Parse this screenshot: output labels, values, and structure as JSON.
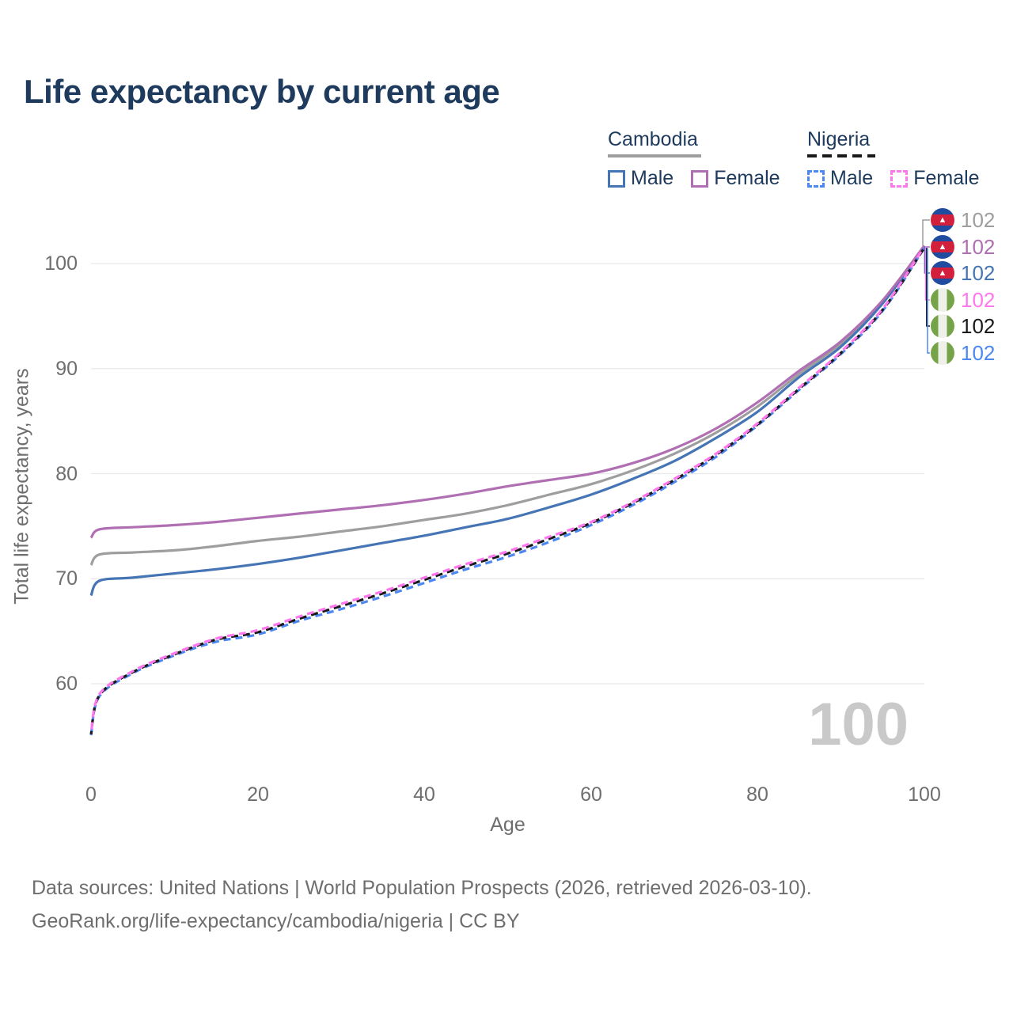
{
  "title": "Life expectancy by current age",
  "legend": {
    "cambodia": {
      "name": "Cambodia",
      "male_label": "Male",
      "female_label": "Female"
    },
    "nigeria": {
      "name": "Nigeria",
      "male_label": "Male",
      "female_label": "Female"
    }
  },
  "end_labels": [
    {
      "flag": "cambodia",
      "value": "102",
      "color": "#9e9e9e",
      "series": "cambodia_both"
    },
    {
      "flag": "cambodia",
      "value": "102",
      "color": "#b06fb2",
      "series": "cambodia_female"
    },
    {
      "flag": "cambodia",
      "value": "102",
      "color": "#4575b4",
      "series": "cambodia_male"
    },
    {
      "flag": "nigeria",
      "value": "102",
      "color": "#ff77ee",
      "series": "nigeria_female"
    },
    {
      "flag": "nigeria",
      "value": "102",
      "color": "#1a1a1a",
      "series": "nigeria_both"
    },
    {
      "flag": "nigeria",
      "value": "102",
      "color": "#4d87f2",
      "series": "nigeria_male"
    }
  ],
  "axes": {
    "xlabel": "Age",
    "ylabel": "Total life expectancy, years",
    "xticks": [
      "0",
      "20",
      "40",
      "60",
      "80",
      "100"
    ],
    "yticks": [
      "100",
      "90",
      "80",
      "70",
      "60"
    ]
  },
  "watermark": "100",
  "footer": {
    "line1": "Data sources: United Nations | World Population Prospects (2026, retrieved 2026-03-10).",
    "line2": "GeoRank.org/life-expectancy/cambodia/nigeria | CC BY"
  },
  "colors": {
    "title_text": "#1e3a5c",
    "grid": "#e9e9e9",
    "tick_text": "#6e6e6e",
    "watermark": "#c9c9c9",
    "cambodia_underline": "#9e9e9e",
    "nigeria_underline": "#1a1a1a"
  },
  "chart_data": {
    "type": "line",
    "title": "Life expectancy by current age",
    "xlabel": "Age",
    "ylabel": "Total life expectancy, years",
    "xlim": [
      0,
      100
    ],
    "ylim": [
      55,
      102
    ],
    "xticks": [
      0,
      20,
      40,
      60,
      80,
      100
    ],
    "yticks": [
      60,
      70,
      80,
      90,
      100
    ],
    "grid": "horizontal",
    "legend_position": "top-right",
    "x": [
      0,
      1,
      5,
      10,
      15,
      20,
      25,
      30,
      35,
      40,
      45,
      50,
      55,
      60,
      65,
      70,
      75,
      80,
      85,
      90,
      95,
      100
    ],
    "series": [
      {
        "id": "cambodia_both",
        "name": "Cambodia - both sexes",
        "color": "#9e9e9e",
        "dash": false,
        "values": [
          71.3,
          72.3,
          72.5,
          72.7,
          73.1,
          73.6,
          74.0,
          74.5,
          75.0,
          75.6,
          76.2,
          77.0,
          78.0,
          79.0,
          80.3,
          81.9,
          83.9,
          86.4,
          89.5,
          92.4,
          96.4,
          101.7
        ]
      },
      {
        "id": "cambodia_male",
        "name": "Cambodia - male",
        "color": "#4575b4",
        "dash": false,
        "values": [
          68.4,
          69.8,
          70.1,
          70.5,
          70.9,
          71.4,
          72.0,
          72.7,
          73.4,
          74.1,
          74.9,
          75.7,
          76.8,
          78.0,
          79.5,
          81.2,
          83.4,
          85.9,
          89.2,
          92.1,
          96.2,
          101.6
        ]
      },
      {
        "id": "cambodia_female",
        "name": "Cambodia - female",
        "color": "#b06fb2",
        "dash": false,
        "values": [
          73.9,
          74.7,
          74.9,
          75.1,
          75.4,
          75.8,
          76.2,
          76.6,
          77.0,
          77.5,
          78.1,
          78.8,
          79.4,
          80.0,
          81.0,
          82.4,
          84.3,
          86.8,
          89.8,
          92.6,
          96.5,
          101.7
        ]
      },
      {
        "id": "nigeria_male",
        "name": "Nigeria - male",
        "color": "#4d87f2",
        "dash": true,
        "values": [
          55.1,
          58.8,
          61.0,
          62.7,
          64.0,
          64.7,
          66.0,
          67.1,
          68.3,
          69.6,
          70.9,
          72.1,
          73.5,
          75.1,
          77.0,
          79.2,
          81.6,
          84.6,
          88.0,
          91.4,
          95.5,
          101.5
        ]
      },
      {
        "id": "nigeria_both",
        "name": "Nigeria - both sexes",
        "color": "#1a1a1a",
        "dash": true,
        "values": [
          55.2,
          58.9,
          61.1,
          62.8,
          64.2,
          64.9,
          66.2,
          67.4,
          68.6,
          69.9,
          71.2,
          72.4,
          73.8,
          75.3,
          77.2,
          79.4,
          81.8,
          84.7,
          88.1,
          91.5,
          95.6,
          101.5
        ]
      },
      {
        "id": "nigeria_female",
        "name": "Nigeria - female",
        "color": "#ff77ee",
        "dash": true,
        "values": [
          55.3,
          59.0,
          61.2,
          62.9,
          64.3,
          65.1,
          66.4,
          67.6,
          68.8,
          70.1,
          71.4,
          72.6,
          74.0,
          75.4,
          77.3,
          79.5,
          81.9,
          84.8,
          88.2,
          91.6,
          95.7,
          101.6
        ]
      }
    ],
    "end_value_label": "102",
    "highlighted_age": "100"
  }
}
